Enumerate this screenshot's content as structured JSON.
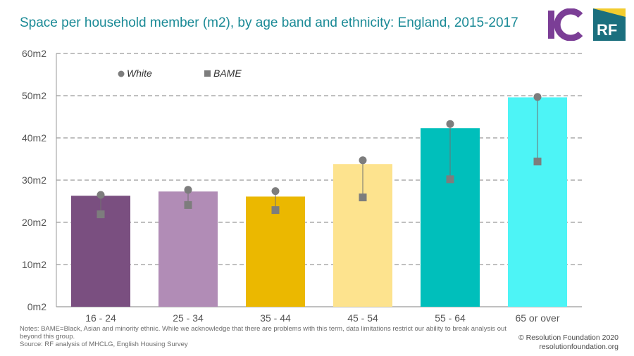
{
  "header": {
    "title": "Space per household member (m2), by age band and ethnicity: England, 2015-2017",
    "logos": [
      {
        "name": "ic-logo",
        "text": "IC",
        "color": "#7b3e96"
      },
      {
        "name": "rf-logo",
        "text": "RF",
        "color": "#1b6f7e",
        "accent": "#f2cc2f"
      }
    ]
  },
  "chart_data": {
    "type": "bar",
    "categories": [
      "16 - 24",
      "25 - 34",
      "35 - 44",
      "45 - 54",
      "55 - 64",
      "65 or over"
    ],
    "bar_values": [
      26.3,
      27.3,
      26.1,
      33.8,
      42.3,
      49.6
    ],
    "bar_colors": [
      "#7a4f80",
      "#b18cb6",
      "#ebb800",
      "#fde38e",
      "#00bfbb",
      "#4df4f6"
    ],
    "series": [
      {
        "name": "White",
        "marker": "circle",
        "color": "#7d7d7d",
        "values": [
          26.5,
          27.7,
          27.4,
          34.7,
          43.3,
          49.7
        ]
      },
      {
        "name": "BAME",
        "marker": "square",
        "color": "#7d7d7d",
        "values": [
          21.9,
          24.1,
          22.9,
          25.9,
          30.2,
          34.4
        ]
      }
    ],
    "ylim": [
      0,
      60
    ],
    "y_ticks": [
      "0m2",
      "10m2",
      "20m2",
      "30m2",
      "40m2",
      "50m2",
      "60m2"
    ],
    "grid": true,
    "legend_position": "top-left"
  },
  "footer": {
    "notes": "Notes: BAME=Black, Asian and minority ethnic. While we acknowledge that there are problems with this term, data limitations restrict our ability to break analysis out beyond this group.",
    "source": "Source: RF analysis of MHCLG, English Housing Survey",
    "copyright": "© Resolution Foundation 2020",
    "website": "resolutionfoundation.org"
  }
}
